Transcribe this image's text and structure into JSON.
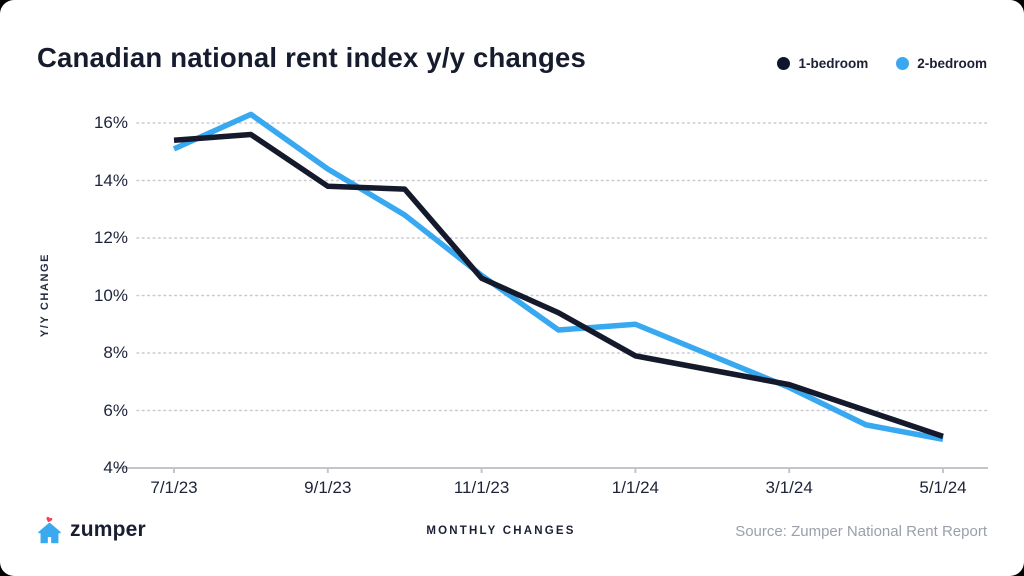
{
  "title": "Canadian national rent index y/y changes",
  "legend": [
    {
      "label": "1-bedroom",
      "color": "#10152b"
    },
    {
      "label": "2-bedroom",
      "color": "#38a9f0"
    }
  ],
  "footer": {
    "brand": "zumper",
    "xlabel": "MONTHLY CHANGES",
    "source": "Source: Zumper National Rent Report"
  },
  "colors": {
    "accent_blue": "#38a9f0",
    "accent_dark": "#141a2c",
    "grid": "#c9cbd2",
    "axis": "#c2c5cc",
    "heart": "#f4405e"
  },
  "chart_data": {
    "type": "line",
    "x": [
      "7/1/23",
      "8/1/23",
      "9/1/23",
      "10/1/23",
      "11/1/23",
      "12/1/23",
      "1/1/24",
      "2/1/24",
      "3/1/24",
      "4/1/24",
      "5/1/24"
    ],
    "x_tick_labels": [
      "7/1/23",
      "9/1/23",
      "11/1/23",
      "1/1/24",
      "3/1/24",
      "5/1/24"
    ],
    "series": [
      {
        "name": "1-bedroom",
        "color": "#141a2c",
        "values": [
          15.4,
          15.6,
          13.8,
          13.7,
          10.6,
          9.4,
          7.9,
          7.4,
          6.9,
          6.0,
          5.1
        ]
      },
      {
        "name": "2-bedroom",
        "color": "#38a9f0",
        "values": [
          15.1,
          16.3,
          14.4,
          12.8,
          10.7,
          8.8,
          9.0,
          7.9,
          6.8,
          5.5,
          5.0
        ]
      }
    ],
    "title": "Canadian national rent index y/y changes",
    "xlabel": "MONTHLY CHANGES",
    "ylabel": "Y/Y CHANGE",
    "y_ticks": [
      16,
      14,
      12,
      10,
      8,
      6,
      4
    ],
    "ylim": [
      4,
      17
    ],
    "grid": "horizontal-dotted",
    "legend_position": "top-right"
  }
}
